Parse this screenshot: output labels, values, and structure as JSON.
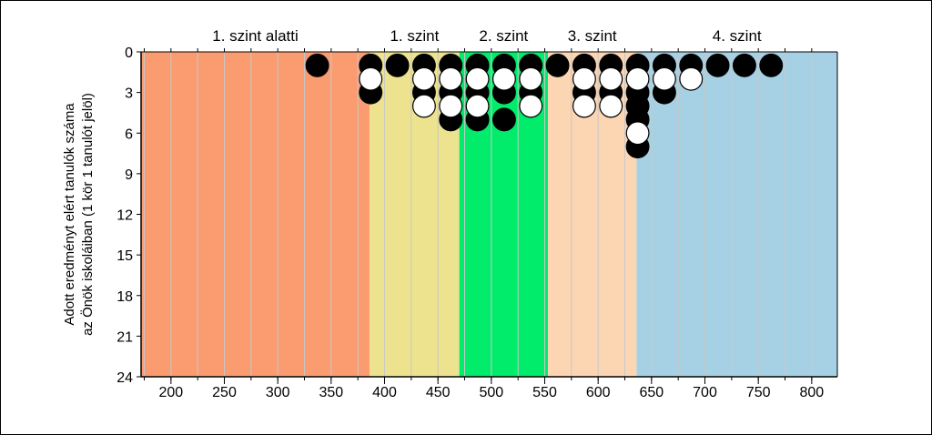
{
  "chart_data": {
    "type": "scatter",
    "title": "",
    "ylabel_line1": "Adott eredményt elért tanulók száma",
    "ylabel_line2": "az Önök iskoláiban (1 kör 1 tanulót jelöl)",
    "xlim": [
      172,
      824
    ],
    "ylim": [
      0,
      24
    ],
    "y_inverted": true,
    "grid": true,
    "x_ticks": [
      200,
      250,
      300,
      350,
      400,
      450,
      500,
      550,
      600,
      650,
      700,
      750,
      800
    ],
    "y_ticks": [
      0,
      3,
      6,
      9,
      12,
      15,
      18,
      21,
      24
    ],
    "levels": [
      {
        "label": "1. szint alatti",
        "x_from": 172,
        "x_to": 386,
        "color": "#fb9b70"
      },
      {
        "label": "1. szint",
        "x_from": 386,
        "x_to": 470,
        "color": "#ede38e"
      },
      {
        "label": "2. szint",
        "x_from": 470,
        "x_to": 553,
        "color": "#00ec6a"
      },
      {
        "label": "3. szint",
        "x_from": 553,
        "x_to": 636,
        "color": "#fcd5b3"
      },
      {
        "label": "4. szint",
        "x_from": 636,
        "x_to": 824,
        "color": "#a6d1e4"
      }
    ],
    "series": [
      {
        "name": "",
        "color": "#000000",
        "points": [
          [
            337,
            1
          ],
          [
            387,
            1
          ],
          [
            387,
            3
          ],
          [
            412,
            1
          ],
          [
            437,
            1
          ],
          [
            437,
            3
          ],
          [
            462,
            1
          ],
          [
            462,
            3
          ],
          [
            462,
            5
          ],
          [
            487,
            1
          ],
          [
            487,
            3
          ],
          [
            487,
            5
          ],
          [
            512,
            1
          ],
          [
            512,
            3
          ],
          [
            512,
            5
          ],
          [
            537,
            1
          ],
          [
            537,
            3
          ],
          [
            562,
            1
          ],
          [
            587,
            1
          ],
          [
            587,
            3
          ],
          [
            612,
            1
          ],
          [
            612,
            3
          ],
          [
            637,
            1
          ],
          [
            637,
            3
          ],
          [
            637,
            4
          ],
          [
            637,
            5
          ],
          [
            637,
            7
          ],
          [
            662,
            1
          ],
          [
            662,
            3
          ],
          [
            687,
            1
          ],
          [
            712,
            1
          ],
          [
            737,
            1
          ],
          [
            762,
            1
          ]
        ]
      },
      {
        "name": "",
        "color": "#ffffff",
        "points": [
          [
            387,
            2
          ],
          [
            437,
            2
          ],
          [
            437,
            4
          ],
          [
            462,
            2
          ],
          [
            462,
            4
          ],
          [
            487,
            2
          ],
          [
            487,
            4
          ],
          [
            512,
            2
          ],
          [
            537,
            2
          ],
          [
            537,
            4
          ],
          [
            587,
            2
          ],
          [
            587,
            4
          ],
          [
            612,
            2
          ],
          [
            612,
            4
          ],
          [
            637,
            2
          ],
          [
            637,
            6
          ],
          [
            662,
            2
          ],
          [
            687,
            2
          ]
        ]
      }
    ]
  }
}
